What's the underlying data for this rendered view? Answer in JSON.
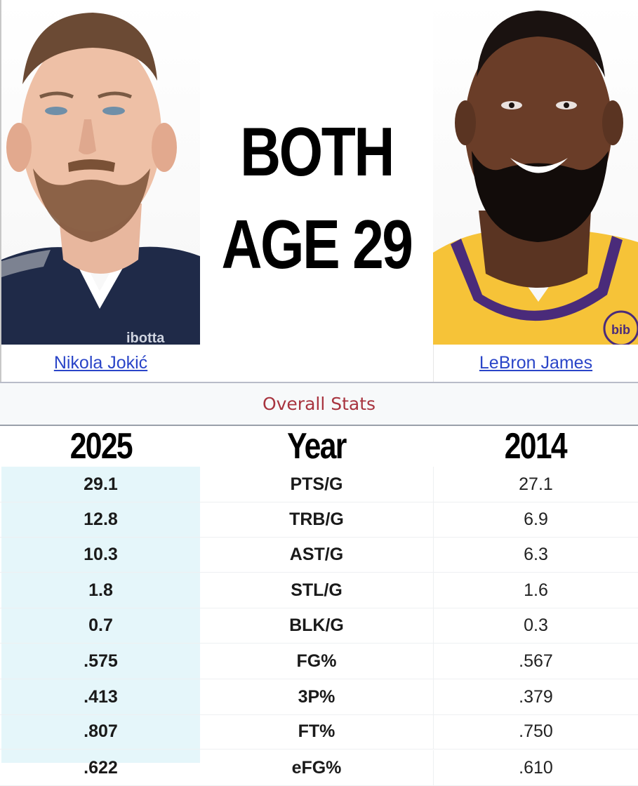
{
  "headline": {
    "line1": "BOTH",
    "line2": "AGE 29"
  },
  "players": {
    "left": {
      "name": "Nikola Jokić",
      "jersey_text": "ibotta"
    },
    "right": {
      "name": "LeBron James",
      "jersey_text": "bib"
    }
  },
  "section_title": "Overall Stats",
  "year_header": {
    "left": "2025",
    "middle": "Year",
    "right": "2014"
  },
  "stats": [
    {
      "label": "PTS/G",
      "left": "29.1",
      "right": "27.1"
    },
    {
      "label": "TRB/G",
      "left": "12.8",
      "right": "6.9"
    },
    {
      "label": "AST/G",
      "left": "10.3",
      "right": "6.3"
    },
    {
      "label": "STL/G",
      "left": "1.8",
      "right": "1.6"
    },
    {
      "label": "BLK/G",
      "left": "0.7",
      "right": "0.3"
    },
    {
      "label": "FG%",
      "left": ".575",
      "right": ".567"
    },
    {
      "label": "3P%",
      "left": ".413",
      "right": ".379"
    },
    {
      "label": "FT%",
      "left": ".807",
      "right": ".750"
    },
    {
      "label": "eFG%",
      "left": ".622",
      "right": ".610"
    }
  ],
  "colors": {
    "link": "#2a45c8",
    "section_title": "#a8343f",
    "left_column_bg": "#e5f6fa",
    "nuggets_navy": "#1f2a48",
    "lakers_gold": "#f6c338"
  }
}
